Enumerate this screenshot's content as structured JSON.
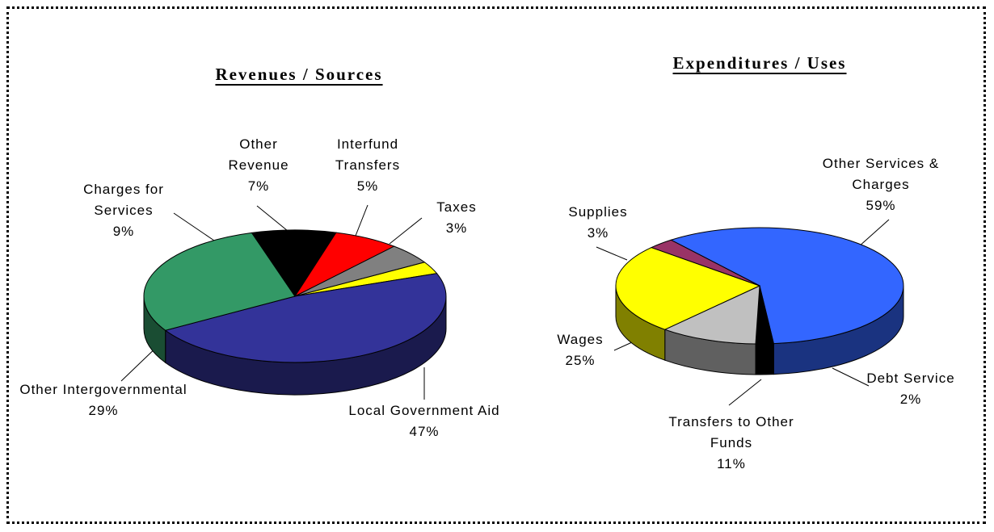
{
  "chart_data": [
    {
      "type": "pie",
      "title": "Revenues / Sources",
      "categories": [
        "Taxes",
        "Local Government Aid",
        "Other Intergovernmental",
        "Charges for Services",
        "Other Revenue",
        "Interfund Transfers"
      ],
      "values": [
        3,
        47,
        29,
        9,
        7,
        5
      ],
      "value_labels": [
        "3%",
        "47%",
        "29%",
        "9%",
        "7%",
        "5%"
      ],
      "colors": [
        "#ffff00",
        "#333399",
        "#339966",
        "#000000",
        "#ff0000",
        "#808080"
      ]
    },
    {
      "type": "pie",
      "title": "Expenditures / Uses",
      "categories": [
        "Other Services & Charges",
        "Debt Service",
        "Transfers to Other Funds",
        "Wages",
        "Supplies"
      ],
      "values": [
        59,
        2,
        11,
        25,
        3
      ],
      "value_labels": [
        "59%",
        "2%",
        "11%",
        "25%",
        "3%"
      ],
      "colors": [
        "#3366ff",
        "#000000",
        "#c0c0c0",
        "#ffff00",
        "#993366"
      ]
    }
  ]
}
